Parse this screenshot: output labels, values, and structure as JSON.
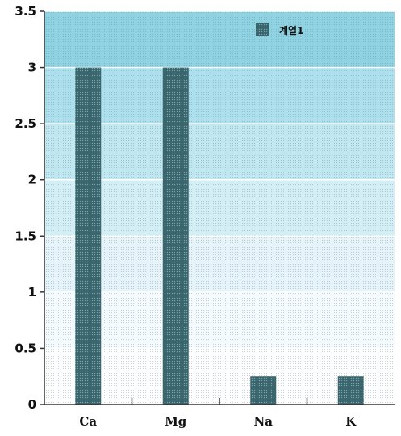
{
  "chart_data": {
    "type": "bar",
    "categories": [
      "Ca",
      "Mg",
      "Na",
      "K"
    ],
    "series": [
      {
        "name": "계열1",
        "values": [
          3,
          3,
          0.25,
          0.25
        ]
      }
    ],
    "ylim": [
      0,
      3.5
    ],
    "yticks": [
      "0",
      "0.5",
      "1",
      "1.5",
      "2",
      "2.5",
      "3",
      "3.5"
    ],
    "title": "",
    "xlabel": "",
    "ylabel": "",
    "grid": true,
    "legend_position": "top-right",
    "colors": {
      "bar": "#3f6b73",
      "bands": [
        "#ffffff",
        "#f4fafd",
        "#e6f4fa",
        "#d4eef6",
        "#c1e7f1",
        "#aedfec",
        "#8fd3e3"
      ],
      "gridline": "#ffffff",
      "axis": "#333333"
    }
  }
}
